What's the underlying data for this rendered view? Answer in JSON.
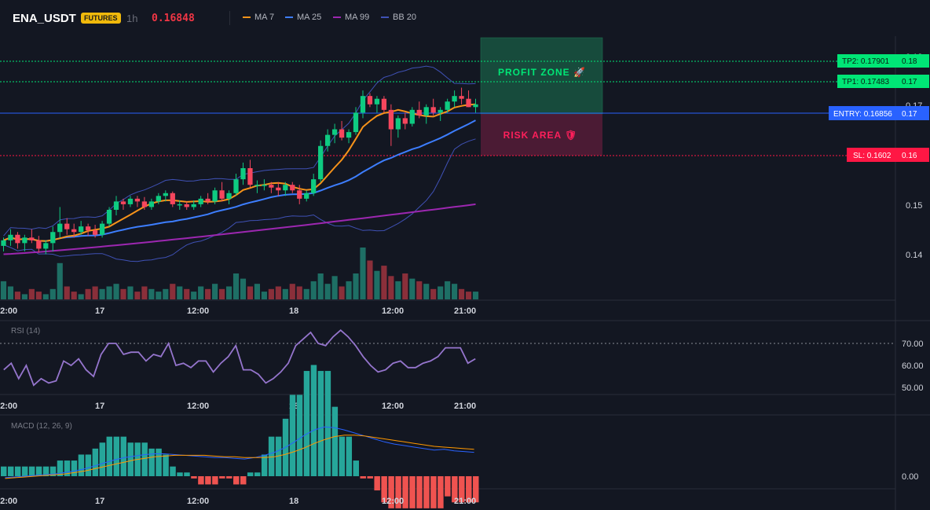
{
  "header": {
    "symbol": "ENA_USDT",
    "badge": "FUTURES",
    "timeframe": "1h",
    "price": "0.16848",
    "legend": [
      {
        "label": "MA 7",
        "color": "#f7931a"
      },
      {
        "label": "MA 25",
        "color": "#3d7eff"
      },
      {
        "label": "MA 99",
        "color": "#9c27b0"
      },
      {
        "label": "BB 20",
        "color": "#3f51b5"
      }
    ]
  },
  "colors": {
    "up": "#26a69a",
    "down": "#ef5350",
    "candle_up": "#0ecb81",
    "candle_down": "#f6465d",
    "vol_up": "#1e6f65",
    "vol_down": "#8a2f3a",
    "tp": "#00e676",
    "entry": "#2962ff",
    "sl": "#ff1744",
    "rsi": "#9575cd",
    "macd": "#2962ff",
    "signal": "#ff9800"
  },
  "price_axis": {
    "ticks": [
      {
        "label": "0.18",
        "value": 0.18
      },
      {
        "label": "0.17",
        "value": 0.17
      },
      {
        "label": "0.15",
        "value": 0.15
      },
      {
        "label": "0.14",
        "value": 0.14
      }
    ]
  },
  "time_axis": [
    "12:00",
    "17",
    "12:00",
    "18",
    "12:00",
    "21:00"
  ],
  "trade_levels": {
    "tp2": {
      "label": "TP2: 0.17901",
      "axis": "0.18",
      "value": 0.17901
    },
    "tp1": {
      "label": "TP1: 0.17483",
      "axis": "0.17",
      "value": 0.17483
    },
    "entry": {
      "label": "ENTRY: 0.16856",
      "axis": "0.17",
      "value": 0.16856
    },
    "sl": {
      "label": "SL: 0.1602",
      "axis": "0.16",
      "value": 0.1602
    },
    "profit_zone": "PROFIT ZONE 🚀",
    "risk_area": "RISK AREA 🛡"
  },
  "rsi": {
    "title": "RSI (14)",
    "ticks": [
      "70.00",
      "60.00",
      "50.00"
    ],
    "overbought": 70
  },
  "macd": {
    "title": "MACD (12, 26, 9)",
    "ticks": [
      "0.00"
    ]
  },
  "chart_data": {
    "type": "candlestick",
    "series": [
      {
        "name": "ENA_USDT",
        "kind": "ohlc",
        "ohlc": [
          [
            0.143,
            0.1445,
            0.142,
            0.144
          ],
          [
            0.144,
            0.146,
            0.143,
            0.145
          ],
          [
            0.145,
            0.1455,
            0.1425,
            0.1435
          ],
          [
            0.1435,
            0.145,
            0.142,
            0.1445
          ],
          [
            0.1445,
            0.146,
            0.1435,
            0.144
          ],
          [
            0.144,
            0.1448,
            0.1418,
            0.1425
          ],
          [
            0.1425,
            0.144,
            0.1415,
            0.1435
          ],
          [
            0.1435,
            0.1465,
            0.142,
            0.1455
          ],
          [
            0.1455,
            0.15,
            0.1445,
            0.147
          ],
          [
            0.147,
            0.148,
            0.145,
            0.146
          ],
          [
            0.146,
            0.147,
            0.1445,
            0.1455
          ],
          [
            0.1455,
            0.1475,
            0.145,
            0.1465
          ],
          [
            0.1465,
            0.147,
            0.1448,
            0.1458
          ],
          [
            0.1458,
            0.1468,
            0.1445,
            0.145
          ],
          [
            0.145,
            0.1475,
            0.1445,
            0.147
          ],
          [
            0.147,
            0.15,
            0.1465,
            0.1495
          ],
          [
            0.1495,
            0.152,
            0.1485,
            0.151
          ],
          [
            0.151,
            0.1515,
            0.1495,
            0.1505
          ],
          [
            0.1505,
            0.152,
            0.15,
            0.1515
          ],
          [
            0.1515,
            0.152,
            0.15,
            0.151
          ],
          [
            0.151,
            0.1518,
            0.1495,
            0.15
          ],
          [
            0.15,
            0.1515,
            0.1495,
            0.151
          ],
          [
            0.151,
            0.1525,
            0.1505,
            0.152
          ],
          [
            0.152,
            0.153,
            0.151,
            0.1525
          ],
          [
            0.1525,
            0.1528,
            0.15,
            0.1505
          ],
          [
            0.1505,
            0.1512,
            0.1495,
            0.1505
          ],
          [
            0.1505,
            0.151,
            0.1495,
            0.15
          ],
          [
            0.15,
            0.1512,
            0.1495,
            0.1505
          ],
          [
            0.1505,
            0.152,
            0.15,
            0.1515
          ],
          [
            0.1515,
            0.1525,
            0.1505,
            0.151
          ],
          [
            0.151,
            0.1535,
            0.1505,
            0.153
          ],
          [
            0.153,
            0.1545,
            0.151,
            0.1515
          ],
          [
            0.1515,
            0.153,
            0.1505,
            0.1525
          ],
          [
            0.1525,
            0.156,
            0.152,
            0.155
          ],
          [
            0.155,
            0.158,
            0.154,
            0.157
          ],
          [
            0.157,
            0.1585,
            0.1535,
            0.154
          ],
          [
            0.154,
            0.1548,
            0.1525,
            0.154
          ],
          [
            0.154,
            0.155,
            0.153,
            0.154
          ],
          [
            0.154,
            0.1545,
            0.1525,
            0.1535
          ],
          [
            0.1535,
            0.1545,
            0.152,
            0.153
          ],
          [
            0.153,
            0.1545,
            0.152,
            0.154
          ],
          [
            0.154,
            0.1545,
            0.1525,
            0.153
          ],
          [
            0.153,
            0.154,
            0.1505,
            0.1515
          ],
          [
            0.1515,
            0.153,
            0.151,
            0.1525
          ],
          [
            0.1525,
            0.156,
            0.152,
            0.155
          ],
          [
            0.155,
            0.162,
            0.1545,
            0.161
          ],
          [
            0.161,
            0.164,
            0.16,
            0.163
          ],
          [
            0.163,
            0.165,
            0.1615,
            0.164
          ],
          [
            0.164,
            0.1655,
            0.162,
            0.1625
          ],
          [
            0.1625,
            0.164,
            0.1615,
            0.1635
          ],
          [
            0.1635,
            0.168,
            0.163,
            0.167
          ],
          [
            0.167,
            0.171,
            0.166,
            0.17
          ],
          [
            0.17,
            0.1705,
            0.168,
            0.1685
          ],
          [
            0.1685,
            0.17,
            0.167,
            0.1695
          ],
          [
            0.1695,
            0.17,
            0.167,
            0.1675
          ],
          [
            0.1675,
            0.1685,
            0.161,
            0.164
          ],
          [
            0.164,
            0.1665,
            0.1625,
            0.166
          ],
          [
            0.166,
            0.167,
            0.164,
            0.165
          ],
          [
            0.165,
            0.168,
            0.1645,
            0.1675
          ],
          [
            0.1675,
            0.169,
            0.166,
            0.1665
          ],
          [
            0.1665,
            0.1685,
            0.165,
            0.168
          ],
          [
            0.168,
            0.1695,
            0.1665,
            0.167
          ],
          [
            0.167,
            0.168,
            0.1655,
            0.1675
          ],
          [
            0.1675,
            0.1695,
            0.167,
            0.169
          ],
          [
            0.169,
            0.171,
            0.168,
            0.17
          ],
          [
            0.17,
            0.1715,
            0.1685,
            0.1695
          ],
          [
            0.1695,
            0.171,
            0.168,
            0.168
          ],
          [
            0.168,
            0.1695,
            0.167,
            0.1685
          ]
        ]
      },
      {
        "name": "Volume",
        "values": [
          14,
          10,
          6,
          4,
          8,
          6,
          4,
          8,
          28,
          10,
          6,
          4,
          8,
          10,
          8,
          10,
          12,
          8,
          10,
          6,
          10,
          8,
          6,
          8,
          12,
          10,
          8,
          6,
          10,
          8,
          12,
          8,
          10,
          20,
          16,
          10,
          12,
          6,
          8,
          10,
          8,
          12,
          10,
          8,
          14,
          20,
          12,
          18,
          10,
          14,
          20,
          40,
          30,
          22,
          26,
          18,
          14,
          20,
          16,
          14,
          12,
          8,
          10,
          14,
          12,
          8,
          6,
          6
        ]
      },
      {
        "name": "RSI",
        "values": [
          58,
          61,
          54,
          60,
          51,
          54,
          52,
          53,
          62,
          60,
          63,
          58,
          55,
          65,
          70,
          70,
          65,
          66,
          66,
          62,
          65,
          64,
          70,
          60,
          61,
          59,
          62,
          62,
          57,
          61,
          64,
          69,
          58,
          58,
          56,
          52,
          54,
          57,
          61,
          69,
          72,
          75,
          70,
          69,
          73,
          76,
          73,
          69,
          64,
          60,
          57,
          58,
          61,
          62,
          59,
          59,
          61,
          62,
          64,
          68,
          68,
          68,
          61,
          63
        ]
      },
      {
        "name": "MACD",
        "values": [
          -0.2,
          -0.1,
          0,
          0.1,
          0.2,
          0.3,
          0.5,
          0.7,
          1.0,
          1.4,
          1.8,
          2.2,
          2.5,
          2.7,
          2.9,
          3.0,
          3.0,
          2.9,
          2.8,
          2.7,
          2.6,
          2.5,
          2.5,
          2.4,
          2.3,
          2.5,
          2.8,
          3.2,
          3.8,
          4.6,
          5.5,
          6.2,
          6.6,
          6.5,
          6.2,
          5.8,
          5.4,
          5.0,
          4.6,
          4.3,
          4.1,
          3.9,
          3.7,
          3.5,
          3.6,
          3.4,
          3.3,
          3.2
        ]
      },
      {
        "name": "Signal",
        "values": [
          -0.3,
          -0.2,
          -0.1,
          0,
          0.1,
          0.2,
          0.3,
          0.5,
          0.7,
          1.0,
          1.3,
          1.6,
          1.9,
          2.2,
          2.4,
          2.6,
          2.7,
          2.8,
          2.8,
          2.8,
          2.8,
          2.7,
          2.6,
          2.6,
          2.5,
          2.5,
          2.5,
          2.6,
          2.9,
          3.3,
          3.8,
          4.4,
          4.9,
          5.3,
          5.5,
          5.5,
          5.4,
          5.2,
          5.0,
          4.8,
          4.6,
          4.4,
          4.2,
          4.0,
          3.9,
          3.8,
          3.7,
          3.6
        ]
      }
    ],
    "ylim": [
      0.132,
      0.183
    ]
  }
}
